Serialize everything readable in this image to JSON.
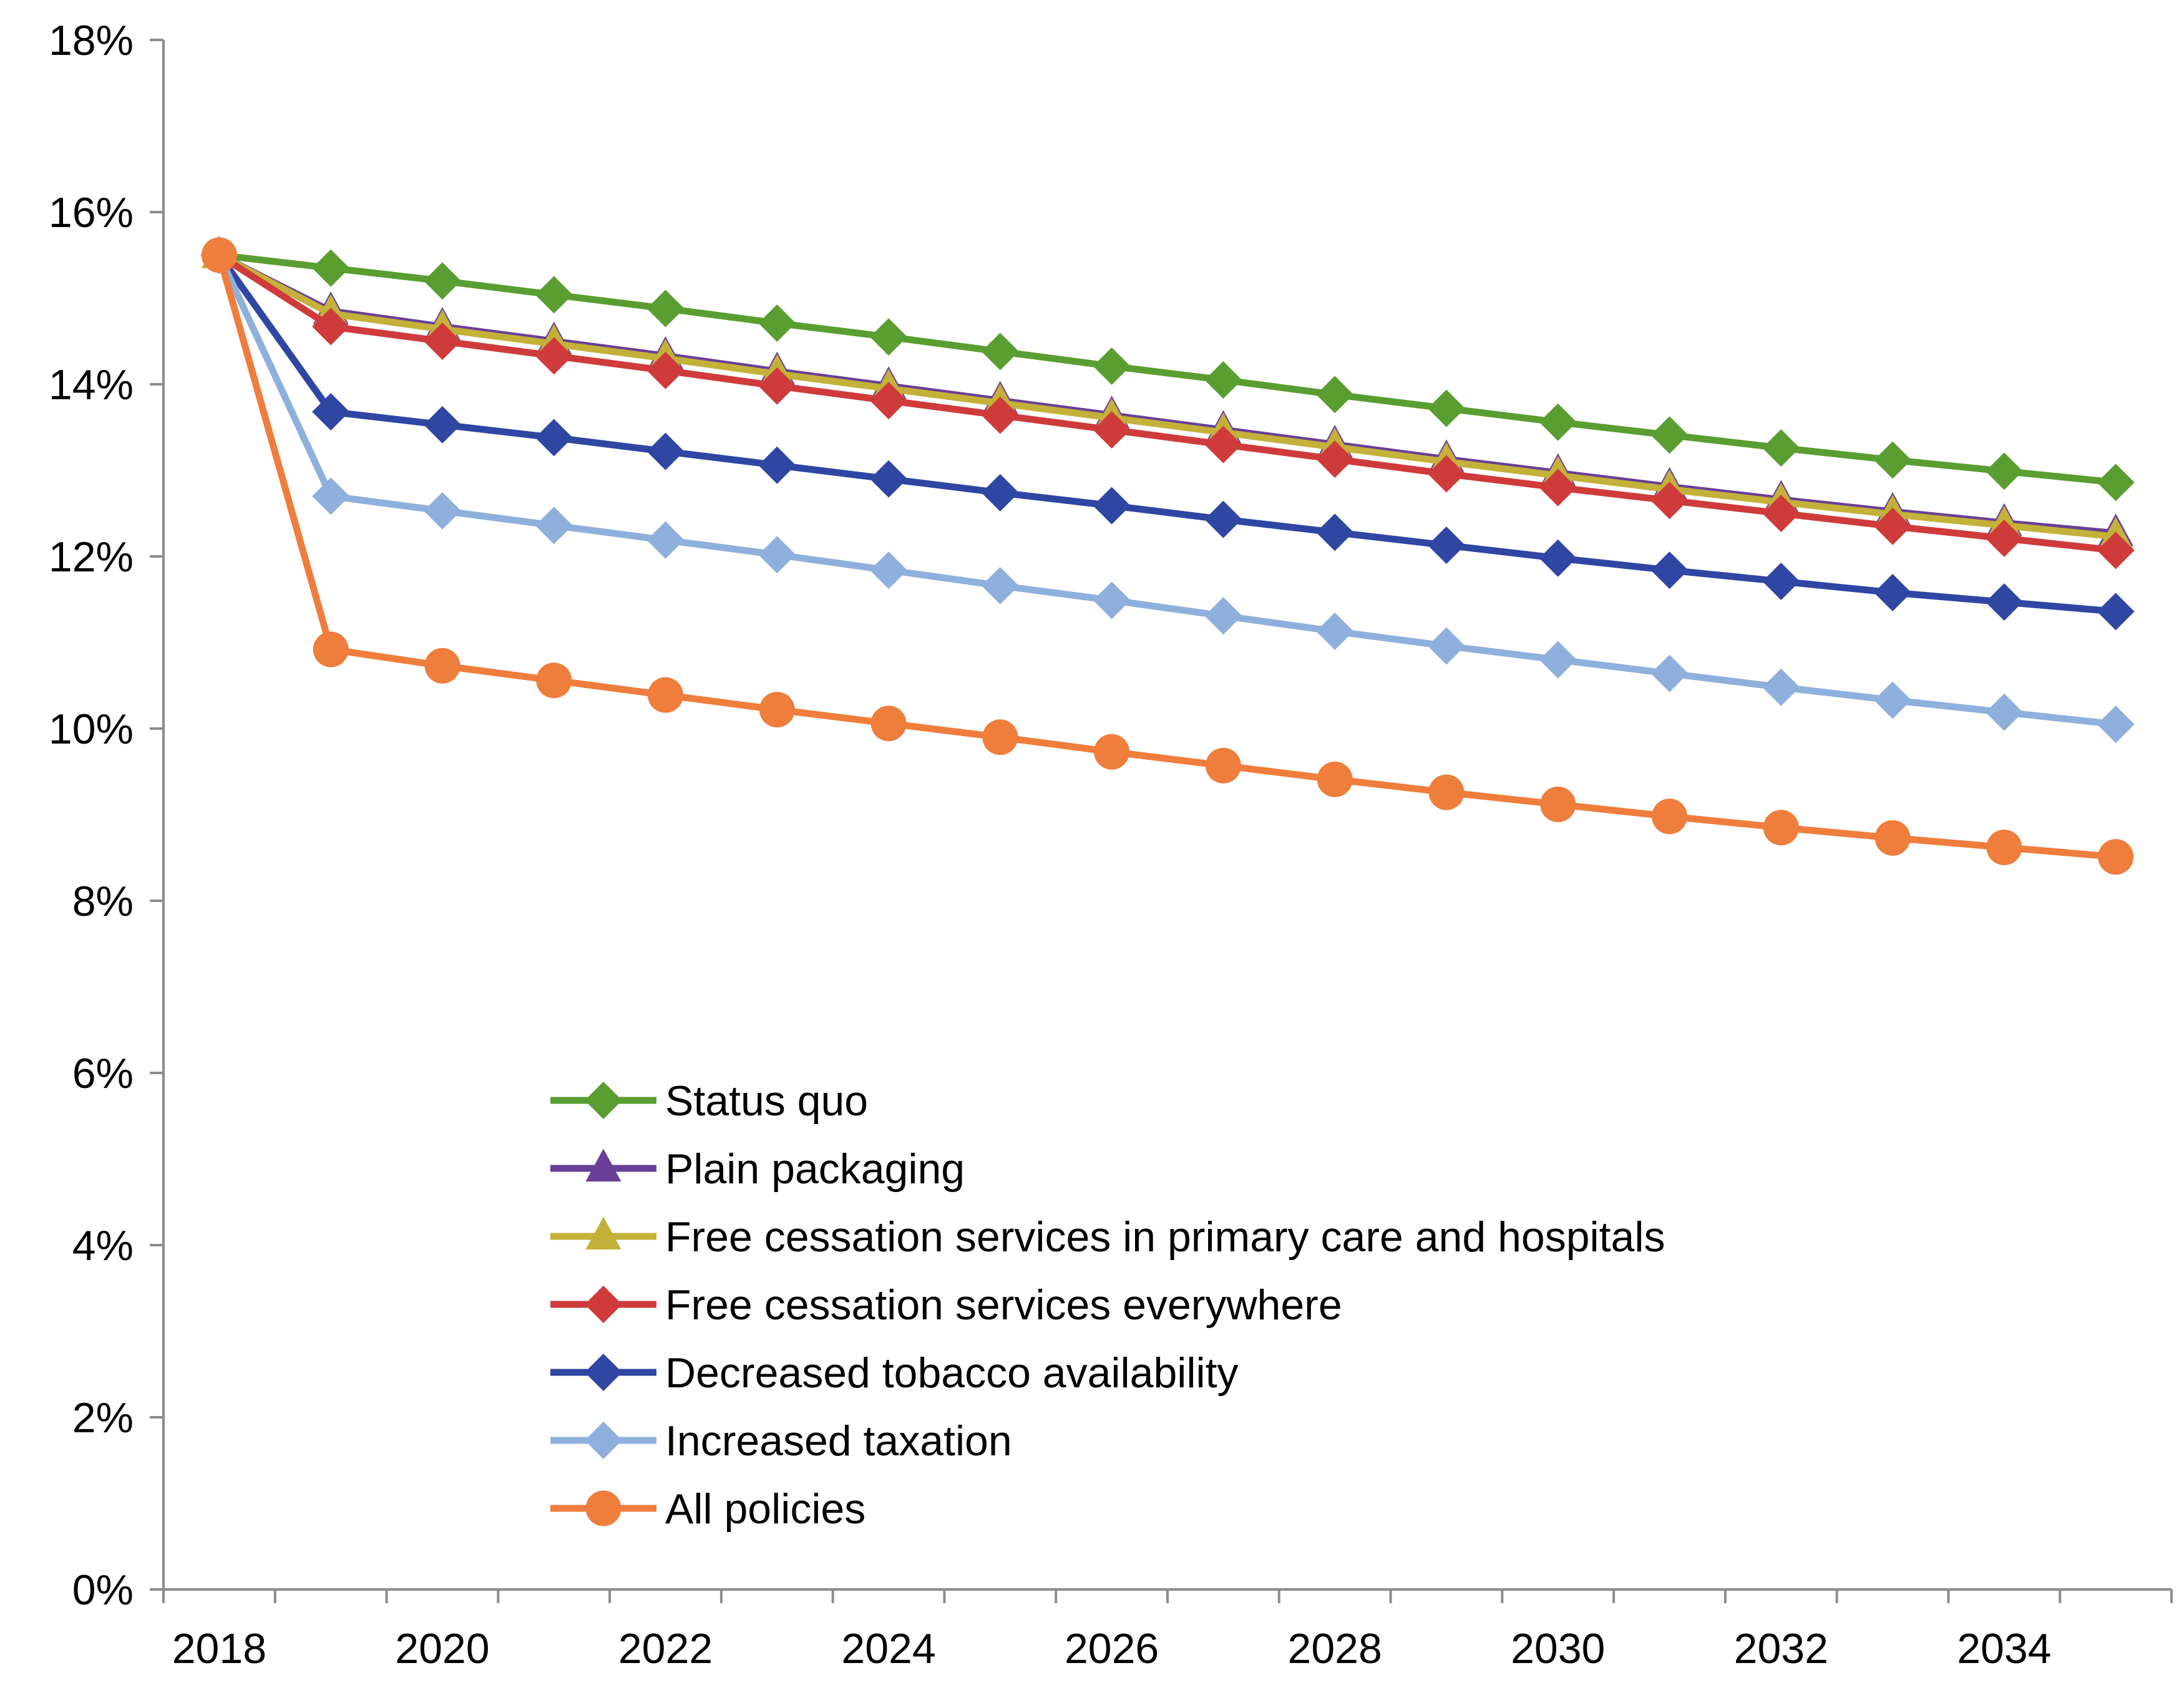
{
  "chart_data": {
    "type": "line",
    "title": "",
    "xlabel": "",
    "ylabel": "",
    "ylim": [
      0,
      18
    ],
    "y_ticks": [
      0,
      2,
      4,
      6,
      8,
      10,
      12,
      14,
      16,
      18
    ],
    "y_tick_labels": [
      "0%",
      "2%",
      "4%",
      "6%",
      "8%",
      "10%",
      "12%",
      "14%",
      "16%",
      "18%"
    ],
    "x_ticks": [
      2018,
      2020,
      2022,
      2024,
      2026,
      2028,
      2030,
      2032,
      2034
    ],
    "x_tick_labels": [
      "2018",
      "2020",
      "2022",
      "2024",
      "2026",
      "2028",
      "2030",
      "2032",
      "2034"
    ],
    "x": [
      2018,
      2019,
      2020,
      2021,
      2022,
      2023,
      2024,
      2025,
      2026,
      2027,
      2028,
      2029,
      2030,
      2031,
      2032,
      2033,
      2034,
      2035
    ],
    "grid": false,
    "legend_position": "bottom-center",
    "series": [
      {
        "name": "Status quo",
        "color": "#5a9e32",
        "marker": "diamond",
        "values": [
          15.5,
          15.35,
          15.2,
          15.04,
          14.88,
          14.71,
          14.55,
          14.38,
          14.21,
          14.05,
          13.88,
          13.72,
          13.56,
          13.41,
          13.26,
          13.12,
          12.99,
          12.86
        ]
      },
      {
        "name": "Plain packaging",
        "color": "#6a3f97",
        "marker": "triangle",
        "values": [
          15.5,
          14.85,
          14.67,
          14.5,
          14.33,
          14.15,
          13.98,
          13.81,
          13.64,
          13.47,
          13.3,
          13.13,
          12.97,
          12.81,
          12.66,
          12.52,
          12.39,
          12.27
        ]
      },
      {
        "name": "Free cessation services in primary care and hospitals",
        "color": "#c3b13a",
        "marker": "triangle",
        "values": [
          15.5,
          14.82,
          14.64,
          14.47,
          14.3,
          14.12,
          13.95,
          13.78,
          13.61,
          13.44,
          13.27,
          13.1,
          12.94,
          12.78,
          12.63,
          12.49,
          12.36,
          12.23
        ]
      },
      {
        "name": "Free cessation services everywhere",
        "color": "#cf3b3b",
        "marker": "diamond",
        "values": [
          15.5,
          14.67,
          14.5,
          14.33,
          14.16,
          13.98,
          13.81,
          13.64,
          13.47,
          13.3,
          13.13,
          12.96,
          12.8,
          12.65,
          12.5,
          12.35,
          12.21,
          12.07
        ]
      },
      {
        "name": "Decreased tobacco availability",
        "color": "#2f46a3",
        "marker": "diamond",
        "values": [
          15.5,
          13.68,
          13.53,
          13.38,
          13.22,
          13.06,
          12.9,
          12.74,
          12.59,
          12.43,
          12.28,
          12.13,
          11.98,
          11.84,
          11.71,
          11.58,
          11.47,
          11.36
        ]
      },
      {
        "name": "Increased taxation",
        "color": "#8fb0dc",
        "marker": "diamond",
        "values": [
          15.5,
          12.7,
          12.53,
          12.36,
          12.19,
          12.02,
          11.84,
          11.66,
          11.49,
          11.31,
          11.13,
          10.96,
          10.8,
          10.64,
          10.48,
          10.33,
          10.19,
          10.05
        ]
      },
      {
        "name": "All policies",
        "color": "#ef7d3c",
        "marker": "circle",
        "values": [
          15.5,
          10.92,
          10.73,
          10.56,
          10.39,
          10.22,
          10.06,
          9.9,
          9.73,
          9.57,
          9.41,
          9.26,
          9.12,
          8.98,
          8.85,
          8.73,
          8.62,
          8.51
        ]
      }
    ]
  }
}
